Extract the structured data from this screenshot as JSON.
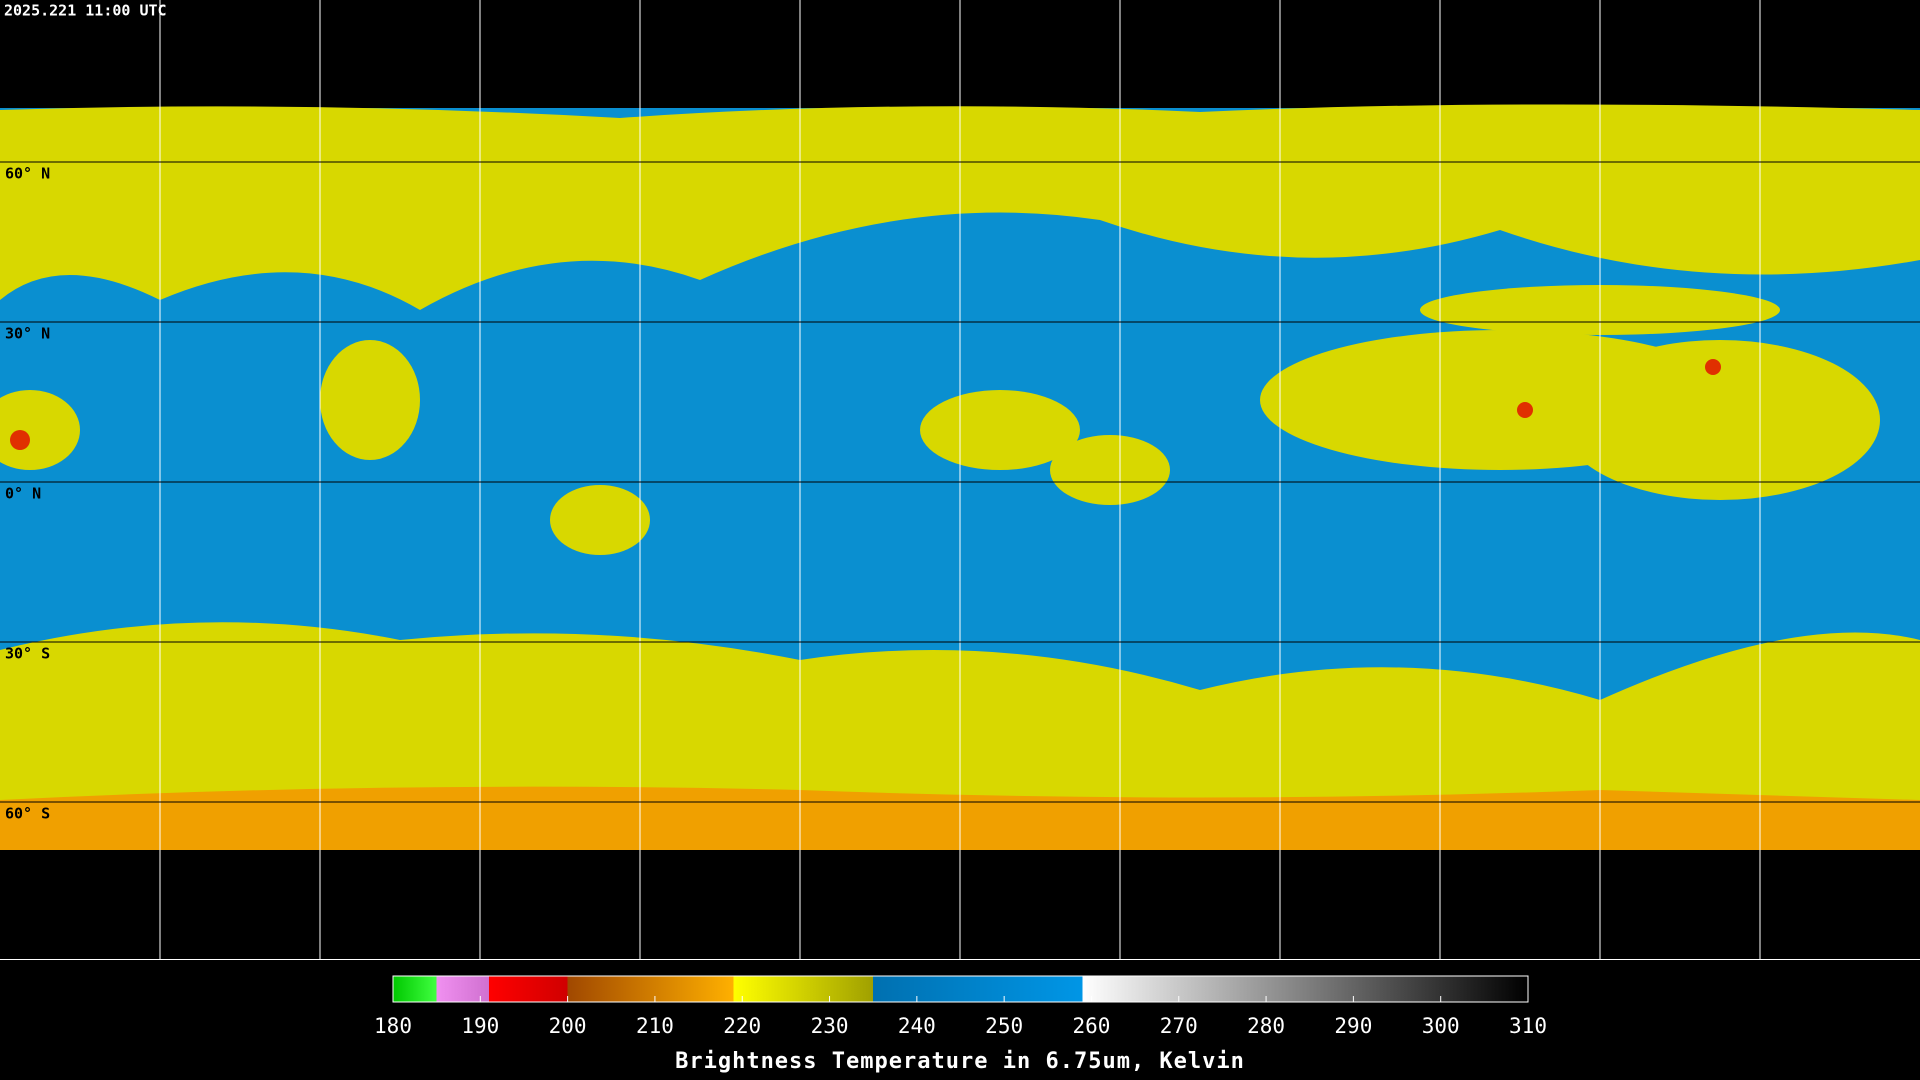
{
  "header": {
    "timestamp": "2025.221 11:00 UTC"
  },
  "map": {
    "lat_labels": [
      "60° N",
      "30° N",
      "0° N",
      "30° S",
      "60° S"
    ]
  },
  "colorbar": {
    "title": "Brightness Temperature in 6.75um, Kelvin",
    "lim": [
      180,
      310
    ],
    "ticks": [
      180,
      190,
      200,
      210,
      220,
      230,
      240,
      250,
      260,
      270,
      280,
      290,
      300,
      310
    ],
    "stops": [
      {
        "value": 180,
        "color": "#00c800"
      },
      {
        "value": 185,
        "color": "#40ff40"
      },
      {
        "value": 185,
        "color": "#f090f0"
      },
      {
        "value": 191,
        "color": "#d070d0"
      },
      {
        "value": 191,
        "color": "#ff0000"
      },
      {
        "value": 200,
        "color": "#d00000"
      },
      {
        "value": 200,
        "color": "#a04800"
      },
      {
        "value": 219,
        "color": "#ffb000"
      },
      {
        "value": 219,
        "color": "#ffff00"
      },
      {
        "value": 235,
        "color": "#a0a000"
      },
      {
        "value": 235,
        "color": "#0070b0"
      },
      {
        "value": 259,
        "color": "#0096e6"
      },
      {
        "value": 259,
        "color": "#ffffff"
      },
      {
        "value": 310,
        "color": "#000000"
      }
    ]
  }
}
